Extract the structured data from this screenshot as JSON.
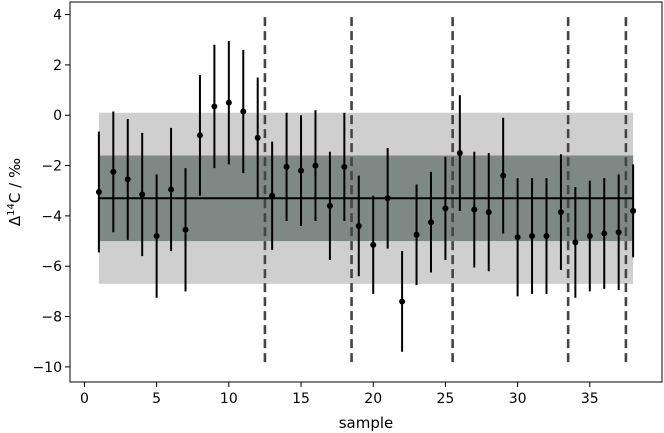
{
  "chart_data": {
    "type": "scatter",
    "xlabel": "sample",
    "ylabel_main": "Δ",
    "ylabel_sup": "14",
    "ylabel_rest": "C / ‰",
    "xlim": [
      -1,
      40
    ],
    "ylim": [
      -10.6,
      4.5
    ],
    "xticks": [
      0,
      5,
      10,
      15,
      20,
      25,
      30,
      35
    ],
    "yticks": [
      -10,
      -8,
      -6,
      -4,
      -2,
      0,
      2,
      4
    ],
    "x": [
      1,
      2,
      3,
      4,
      5,
      6,
      7,
      8,
      9,
      10,
      11,
      12,
      13,
      14,
      15,
      16,
      17,
      18,
      19,
      20,
      21,
      22,
      23,
      24,
      25,
      26,
      27,
      28,
      29,
      30,
      31,
      32,
      33,
      34,
      35,
      36,
      37,
      38
    ],
    "y": [
      -3.05,
      -2.25,
      -2.55,
      -3.15,
      -4.8,
      -2.95,
      -4.55,
      -0.8,
      0.35,
      0.5,
      0.15,
      -0.9,
      -3.2,
      -2.05,
      -2.2,
      -2.0,
      -3.6,
      -2.05,
      -4.4,
      -5.15,
      -3.3,
      -7.4,
      -4.75,
      -4.25,
      -3.7,
      -1.5,
      -3.75,
      -3.85,
      -2.4,
      -4.85,
      -4.8,
      -4.8,
      -3.85,
      -5.05,
      -4.8,
      -4.7,
      -4.65,
      -3.8
    ],
    "err": [
      2.4,
      2.4,
      2.4,
      2.45,
      2.45,
      2.45,
      2.45,
      2.4,
      2.45,
      2.45,
      2.45,
      2.4,
      2.15,
      2.15,
      2.2,
      2.2,
      2.15,
      2.15,
      2.0,
      1.95,
      2.0,
      2.0,
      2.0,
      2.0,
      2.05,
      2.3,
      2.3,
      2.35,
      2.3,
      2.35,
      2.3,
      2.3,
      2.3,
      2.2,
      2.2,
      2.2,
      2.3,
      1.85
    ],
    "mean": -3.3,
    "band_1sigma": [
      -5.0,
      -1.6
    ],
    "band_2sigma": [
      -6.7,
      0.1
    ],
    "mean_x_range": [
      1,
      38
    ],
    "vlines": [
      12.5,
      18.5,
      25.5,
      33.5,
      37.5
    ],
    "vline_y_range": [
      -10,
      3.9
    ],
    "colors": {
      "inner_band": "#7e8885",
      "outer_band": "#cfcfcf",
      "points": "#000000",
      "vlines": "#444444"
    },
    "grid": false,
    "legend": "none"
  }
}
